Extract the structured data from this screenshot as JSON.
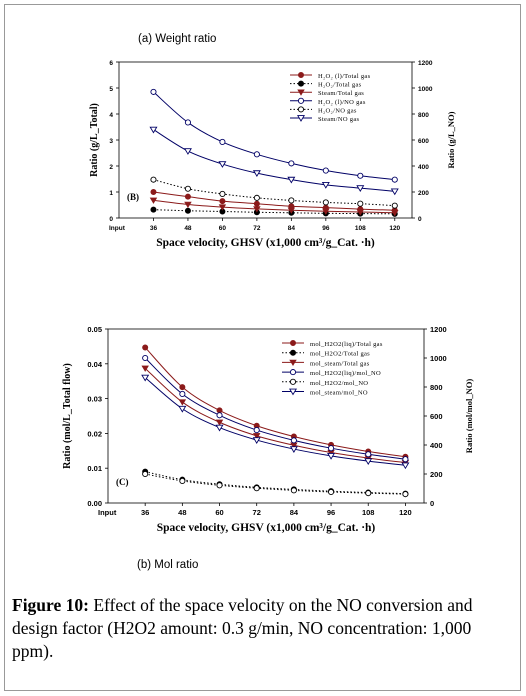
{
  "figure": {
    "label": "Figure 10:",
    "text": "Effect of the space velocity on the NO conversion and design factor (H2O2 amount: 0.3 g/min, NO concentration: 1,000 ppm)."
  },
  "chart_data": [
    {
      "type": "line",
      "title": "(a) Weight ratio",
      "panel_letter": "(B)",
      "xlabel": "Space velocity, GHSV (x1,000 cm³/g_Cat. ·h)",
      "ylabel": "Ratio (g/L_Total)",
      "y2label": "Ratio (g/L_NO)",
      "x_first_tick": "Input",
      "x": [
        36,
        48,
        60,
        72,
        84,
        96,
        108,
        120
      ],
      "xlim": [
        24,
        126
      ],
      "ylim": [
        0,
        6
      ],
      "y_ticks": [
        0,
        1,
        2,
        3,
        4,
        5,
        6
      ],
      "y2lim": [
        0,
        1200
      ],
      "y2_ticks": [
        0,
        200,
        400,
        600,
        800,
        1000,
        1200
      ],
      "legend_position": "top-right",
      "series": [
        {
          "name": "H₂O₂ (l)/Total gas",
          "axis": "left",
          "marker": "filled-circle",
          "line": "solid",
          "color": "#8b1a1a",
          "values": [
            1.0,
            0.82,
            0.65,
            0.55,
            0.45,
            0.4,
            0.34,
            0.3
          ]
        },
        {
          "name": "H₂O₂/Total gas",
          "axis": "left",
          "marker": "filled-circle",
          "line": "dotted",
          "color": "#000000",
          "values": [
            0.32,
            0.28,
            0.25,
            0.22,
            0.2,
            0.18,
            0.17,
            0.16
          ]
        },
        {
          "name": "Steam/Total gas",
          "axis": "left",
          "marker": "filled-triangle-down",
          "line": "solid",
          "color": "#8b1a1a",
          "values": [
            0.68,
            0.52,
            0.42,
            0.35,
            0.3,
            0.26,
            0.23,
            0.2
          ]
        },
        {
          "name": "H₂O₂ (l)/NO gas",
          "axis": "right",
          "marker": "open-circle",
          "line": "solid",
          "color": "#000066",
          "values": [
            970,
            735,
            585,
            490,
            420,
            365,
            325,
            295
          ]
        },
        {
          "name": "H₂O₂/NO gas",
          "axis": "right",
          "marker": "open-circle",
          "line": "dotted",
          "color": "#000000",
          "values": [
            295,
            225,
            185,
            155,
            135,
            120,
            110,
            95
          ]
        },
        {
          "name": "Steam/NO gas",
          "axis": "right",
          "marker": "open-triangle-down",
          "line": "solid",
          "color": "#000066",
          "values": [
            680,
            515,
            415,
            345,
            295,
            255,
            230,
            205
          ]
        }
      ]
    },
    {
      "type": "line",
      "title": "(b) Mol ratio",
      "panel_letter": "(C)",
      "xlabel": "Space velocity, GHSV (x1,000 cm³/g_Cat. ·h)",
      "ylabel": "Ratio (mol/L_Total flow)",
      "y2label": "Ratio (mol/mol_NO)",
      "x_first_tick": "Input",
      "x": [
        36,
        48,
        60,
        72,
        84,
        96,
        108,
        120
      ],
      "xlim": [
        24,
        126
      ],
      "ylim": [
        0,
        0.05
      ],
      "y_ticks": [
        "0.00",
        "0.01",
        "0.02",
        "0.03",
        "0.04",
        "0.05"
      ],
      "y2lim": [
        0,
        1200
      ],
      "y2_ticks": [
        0,
        200,
        400,
        600,
        800,
        1000,
        1200
      ],
      "legend_position": "top-right",
      "series": [
        {
          "name": "mol_H2O2(liq)/Total gas",
          "axis": "left",
          "marker": "filled-circle",
          "line": "solid",
          "color": "#8b1a1a",
          "values": [
            0.0447,
            0.0333,
            0.0266,
            0.0222,
            0.0191,
            0.0167,
            0.0148,
            0.0133
          ]
        },
        {
          "name": "mol_H2O2/Total gas",
          "axis": "left",
          "marker": "filled-circle",
          "line": "dotted",
          "color": "#000000",
          "values": [
            0.009,
            0.0067,
            0.0054,
            0.0045,
            0.0039,
            0.0034,
            0.003,
            0.0027
          ]
        },
        {
          "name": "mol_steam/Total gas",
          "axis": "left",
          "marker": "filled-triangle-down",
          "line": "solid",
          "color": "#8b1a1a",
          "values": [
            0.0387,
            0.029,
            0.0232,
            0.0193,
            0.0166,
            0.0145,
            0.0129,
            0.0116
          ]
        },
        {
          "name": "mol_H2O2(liq)/mol_NO",
          "axis": "right",
          "marker": "open-circle",
          "line": "solid",
          "color": "#000066",
          "values": [
            1000,
            752,
            605,
            503,
            432,
            378,
            336,
            302
          ]
        },
        {
          "name": "mol_H2O2/mol_NO",
          "axis": "right",
          "marker": "open-circle",
          "line": "dotted",
          "color": "#000000",
          "values": [
            200,
            152,
            122,
            102,
            87,
            76,
            68,
            61
          ]
        },
        {
          "name": "mol_steam/mol_NO",
          "axis": "right",
          "marker": "open-triangle-down",
          "line": "solid",
          "color": "#000066",
          "values": [
            865,
            650,
            520,
            434,
            372,
            325,
            289,
            260
          ]
        }
      ]
    }
  ]
}
